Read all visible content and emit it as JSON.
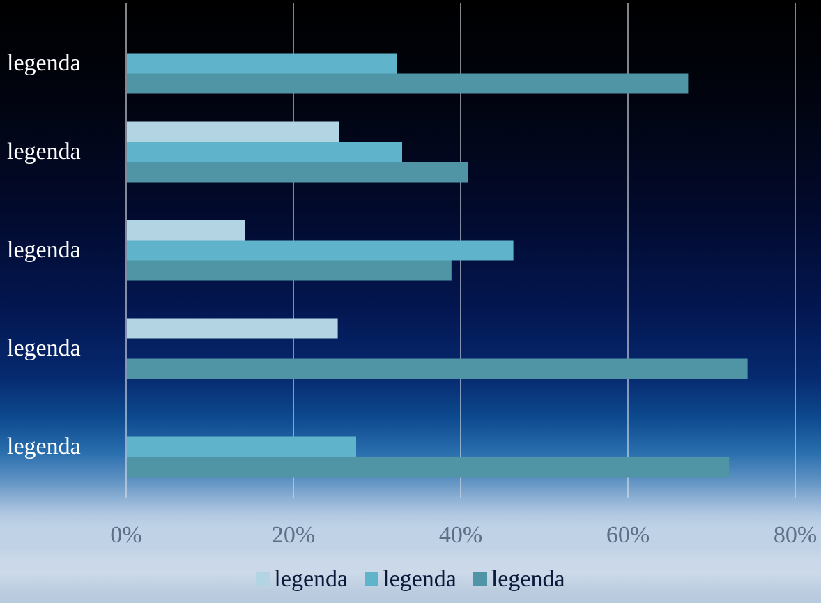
{
  "colors": {
    "series_1": "#b3d4e2",
    "series_2": "#5fb3cb",
    "series_3": "#4f95a6"
  },
  "chart_data": {
    "type": "bar",
    "orientation": "horizontal",
    "categories": [
      "legenda",
      "legenda",
      "legenda",
      "legenda",
      "legenda"
    ],
    "series": [
      {
        "name": "legenda",
        "values": [
          null,
          25.5,
          14.2,
          25.3,
          null
        ]
      },
      {
        "name": "legenda",
        "values": [
          32.4,
          33.0,
          46.3,
          null,
          27.5
        ]
      },
      {
        "name": "legenda",
        "values": [
          67.2,
          40.9,
          38.9,
          74.3,
          72.1
        ]
      }
    ],
    "x_ticks": [
      "0%",
      "20%",
      "40%",
      "60%",
      "80%"
    ],
    "xlim": [
      0,
      80
    ],
    "grid": true,
    "legend_position": "bottom"
  }
}
